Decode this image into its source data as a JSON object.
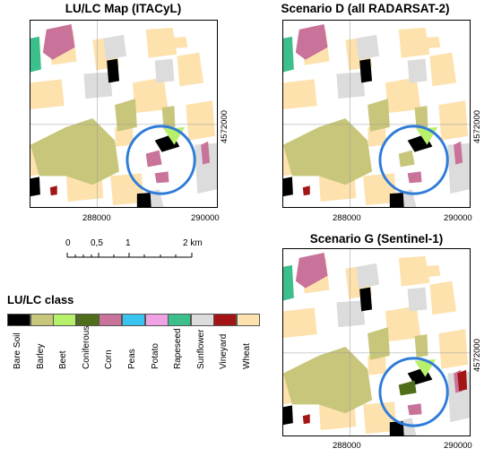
{
  "maps": [
    {
      "title": "LU/LC Map (ITACyL)",
      "x_ticks": [
        "288000",
        "290000"
      ],
      "y_tick": "4572000",
      "highlight_circle": true
    },
    {
      "title": "Scenario D (all RADARSAT-2)",
      "x_ticks": [
        "288000",
        "290000"
      ],
      "y_tick": "4572000",
      "highlight_circle": true
    },
    {
      "title": "Scenario G (Sentinel-1)",
      "x_ticks": [
        "288000",
        "290000"
      ],
      "y_tick": "4572000",
      "highlight_circle": true
    }
  ],
  "scalebar": {
    "labels": [
      "0",
      "0,5",
      "1",
      "2 km"
    ]
  },
  "legend": {
    "title": "LU/LC class",
    "classes": [
      {
        "label": "Bare Soil",
        "color": "#000000"
      },
      {
        "label": "Barley",
        "color": "#c8c67a"
      },
      {
        "label": "Beet",
        "color": "#b7f06a"
      },
      {
        "label": "Coniferous",
        "color": "#4e6e1a"
      },
      {
        "label": "Corn",
        "color": "#c9729a"
      },
      {
        "label": "Peas",
        "color": "#39c3ef"
      },
      {
        "label": "Potato",
        "color": "#f0a3e4"
      },
      {
        "label": "Rapeseed",
        "color": "#3dbf8c"
      },
      {
        "label": "Sunflower",
        "color": "#dcdcdc"
      },
      {
        "label": "Vineyard",
        "color": "#a31515"
      },
      {
        "label": "Wheat",
        "color": "#fde2ae"
      }
    ]
  },
  "colors": {
    "highlight": "#2f7bd8"
  }
}
